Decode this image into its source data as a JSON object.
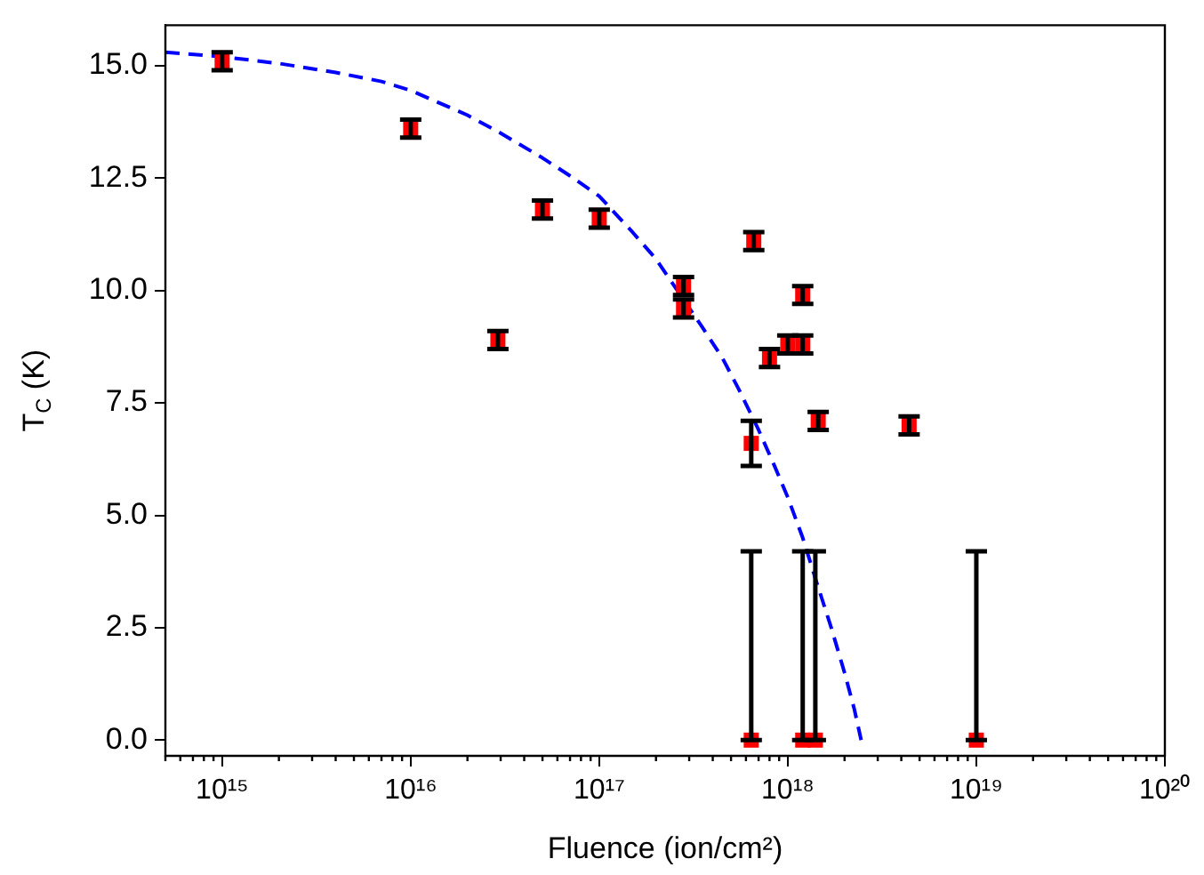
{
  "chart_data": {
    "type": "scatter",
    "xlabel": "Fluence (ion/cm²)",
    "ylabel": "T$_{C}$ (K)",
    "log": "x",
    "grid": false,
    "legend": false,
    "marker": "square",
    "xlim": [
      500000000000000.0,
      1e+20
    ],
    "xticks": [
      {
        "value": 1000000000000000.0,
        "label": "10¹⁵"
      },
      {
        "value": 1e+16,
        "label": "10¹⁶"
      },
      {
        "value": 1e+17,
        "label": "10¹⁷"
      },
      {
        "value": 1e+18,
        "label": "10¹⁸"
      },
      {
        "value": 1e+19,
        "label": "10¹⁹"
      },
      {
        "value": 1e+20,
        "label": "10²⁰"
      }
    ],
    "ylim": [
      -0.35,
      15.9
    ],
    "yticks": [
      {
        "value": 0,
        "label": "0.0"
      },
      {
        "value": 2.5,
        "label": "2.5"
      },
      {
        "value": 5,
        "label": "5.0"
      },
      {
        "value": 7.5,
        "label": "7.5"
      },
      {
        "value": 10,
        "label": "10.0"
      },
      {
        "value": 12.5,
        "label": "12.5"
      },
      {
        "value": 15,
        "label": "15.0"
      }
    ],
    "series": [
      {
        "color": "#ff0000",
        "x": [
          1000000000000000.0,
          1e+16,
          2.9e+16,
          5e+16,
          1e+17,
          2.8e+17,
          2.8e+17,
          6.6e+17,
          6.4e+17,
          8e+17,
          1e+18,
          1.2e+18,
          1.2e+18,
          1.45e+18,
          4.4e+18,
          6.4e+17,
          1.2e+18,
          1.4e+18,
          1e+19
        ],
        "values": [
          15.1,
          13.6,
          8.9,
          11.8,
          11.6,
          10.1,
          9.6,
          11.1,
          6.6,
          8.5,
          8.8,
          8.8,
          9.9,
          7.1,
          7.0,
          0,
          0,
          0,
          0
        ],
        "errors": [
          0.2,
          0.2,
          0.2,
          0.2,
          0.2,
          0.2,
          0.2,
          0.2,
          0.5,
          0.2,
          0.2,
          0.2,
          0.2,
          0.2,
          0.2,
          [
            0,
            4.2
          ],
          [
            0,
            4.2
          ],
          [
            0,
            4.2
          ],
          [
            0,
            4.2
          ]
        ]
      },
      {
        "type": "line",
        "color": "#0000ff",
        "marker": "none",
        "line_style": "dashed",
        "x": [
          500000000000000.0,
          1000000000000000.0,
          2000000000000000.0,
          4000000000000000.0,
          7000000000000000.0,
          1e+16,
          2e+16,
          3e+16,
          5e+16,
          7e+16,
          1e+17,
          1.5e+17,
          2e+17,
          2.8e+17,
          3.5e+17,
          4.5e+17,
          5.5e+17,
          7e+17,
          8.5e+17,
          1e+18,
          1.2e+18,
          1.4e+18,
          1.7e+18,
          2e+18,
          2.25e+18,
          2.45e+18
        ],
        "values": [
          15.3,
          15.2,
          15.05,
          14.85,
          14.65,
          14.45,
          13.9,
          13.5,
          12.95,
          12.55,
          12.1,
          11.3,
          10.7,
          9.8,
          9.2,
          8.5,
          7.8,
          6.9,
          6.1,
          5.4,
          4.5,
          3.6,
          2.5,
          1.5,
          0.7,
          0
        ]
      }
    ]
  }
}
